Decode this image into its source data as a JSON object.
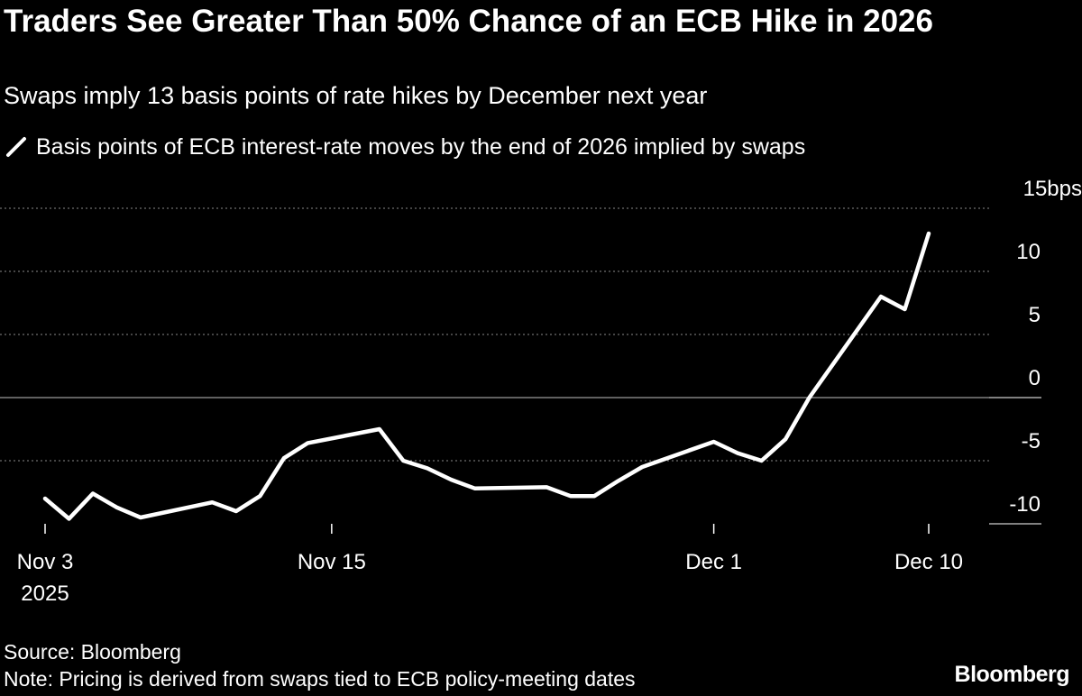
{
  "header": {
    "title": "Traders See Greater Than 50% Chance of an ECB Hike in 2026",
    "subtitle": "Swaps imply 13 basis points of rate hikes by December next year",
    "legend_label": "Basis points of ECB interest-rate moves by the end of 2026 implied by swaps"
  },
  "footer": {
    "source": "Source: Bloomberg",
    "note": "Note: Pricing is derived from swaps tied to ECB policy-meeting dates",
    "logo": "Bloomberg"
  },
  "colors": {
    "background": "#000000",
    "line": "#ffffff",
    "grid": "#8a8a8a"
  },
  "chart_data": {
    "type": "line",
    "y_unit": "bps",
    "ylim": [
      -10,
      15
    ],
    "y_ticks": [
      -10,
      -5,
      0,
      5,
      10,
      15
    ],
    "y_tick_labels": [
      "-10",
      "-5",
      "0",
      "5",
      "10",
      "15bps"
    ],
    "x_range": [
      "2025-11-03",
      "2025-12-10"
    ],
    "x_ticks": [
      {
        "date": "2025-11-03",
        "label": "Nov 3",
        "sublabel": "2025"
      },
      {
        "date": "2025-11-15",
        "label": "Nov 15",
        "sublabel": ""
      },
      {
        "date": "2025-12-01",
        "label": "Dec 1",
        "sublabel": ""
      },
      {
        "date": "2025-12-10",
        "label": "Dec 10",
        "sublabel": ""
      }
    ],
    "grid": true,
    "series": [
      {
        "values": [
          [
            "2025-11-03",
            -8.0
          ],
          [
            "2025-11-04",
            -9.6
          ],
          [
            "2025-11-05",
            -7.6
          ],
          [
            "2025-11-06",
            -8.7
          ],
          [
            "2025-11-07",
            -9.5
          ],
          [
            "2025-11-10",
            -8.3
          ],
          [
            "2025-11-11",
            -9.0
          ],
          [
            "2025-11-12",
            -7.8
          ],
          [
            "2025-11-13",
            -4.8
          ],
          [
            "2025-11-14",
            -3.6
          ],
          [
            "2025-11-17",
            -2.5
          ],
          [
            "2025-11-18",
            -5.0
          ],
          [
            "2025-11-19",
            -5.6
          ],
          [
            "2025-11-20",
            -6.5
          ],
          [
            "2025-11-21",
            -7.2
          ],
          [
            "2025-11-24",
            -7.1
          ],
          [
            "2025-11-25",
            -7.8
          ],
          [
            "2025-11-26",
            -7.8
          ],
          [
            "2025-11-27",
            -6.6
          ],
          [
            "2025-11-28",
            -5.5
          ],
          [
            "2025-12-01",
            -3.5
          ],
          [
            "2025-12-02",
            -4.4
          ],
          [
            "2025-12-03",
            -5.0
          ],
          [
            "2025-12-04",
            -3.3
          ],
          [
            "2025-12-05",
            0.0
          ],
          [
            "2025-12-08",
            8.0
          ],
          [
            "2025-12-09",
            7.0
          ],
          [
            "2025-12-10",
            13.0
          ]
        ]
      }
    ]
  }
}
